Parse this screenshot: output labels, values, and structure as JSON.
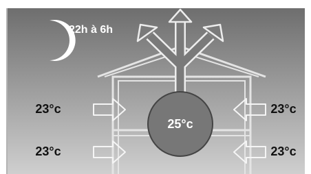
{
  "time_range": "22h à 6h",
  "inside_temp": "25°c",
  "rows": [
    {
      "left": "23°c",
      "right": "23°c"
    },
    {
      "left": "23°c",
      "right": "23°c"
    }
  ]
}
